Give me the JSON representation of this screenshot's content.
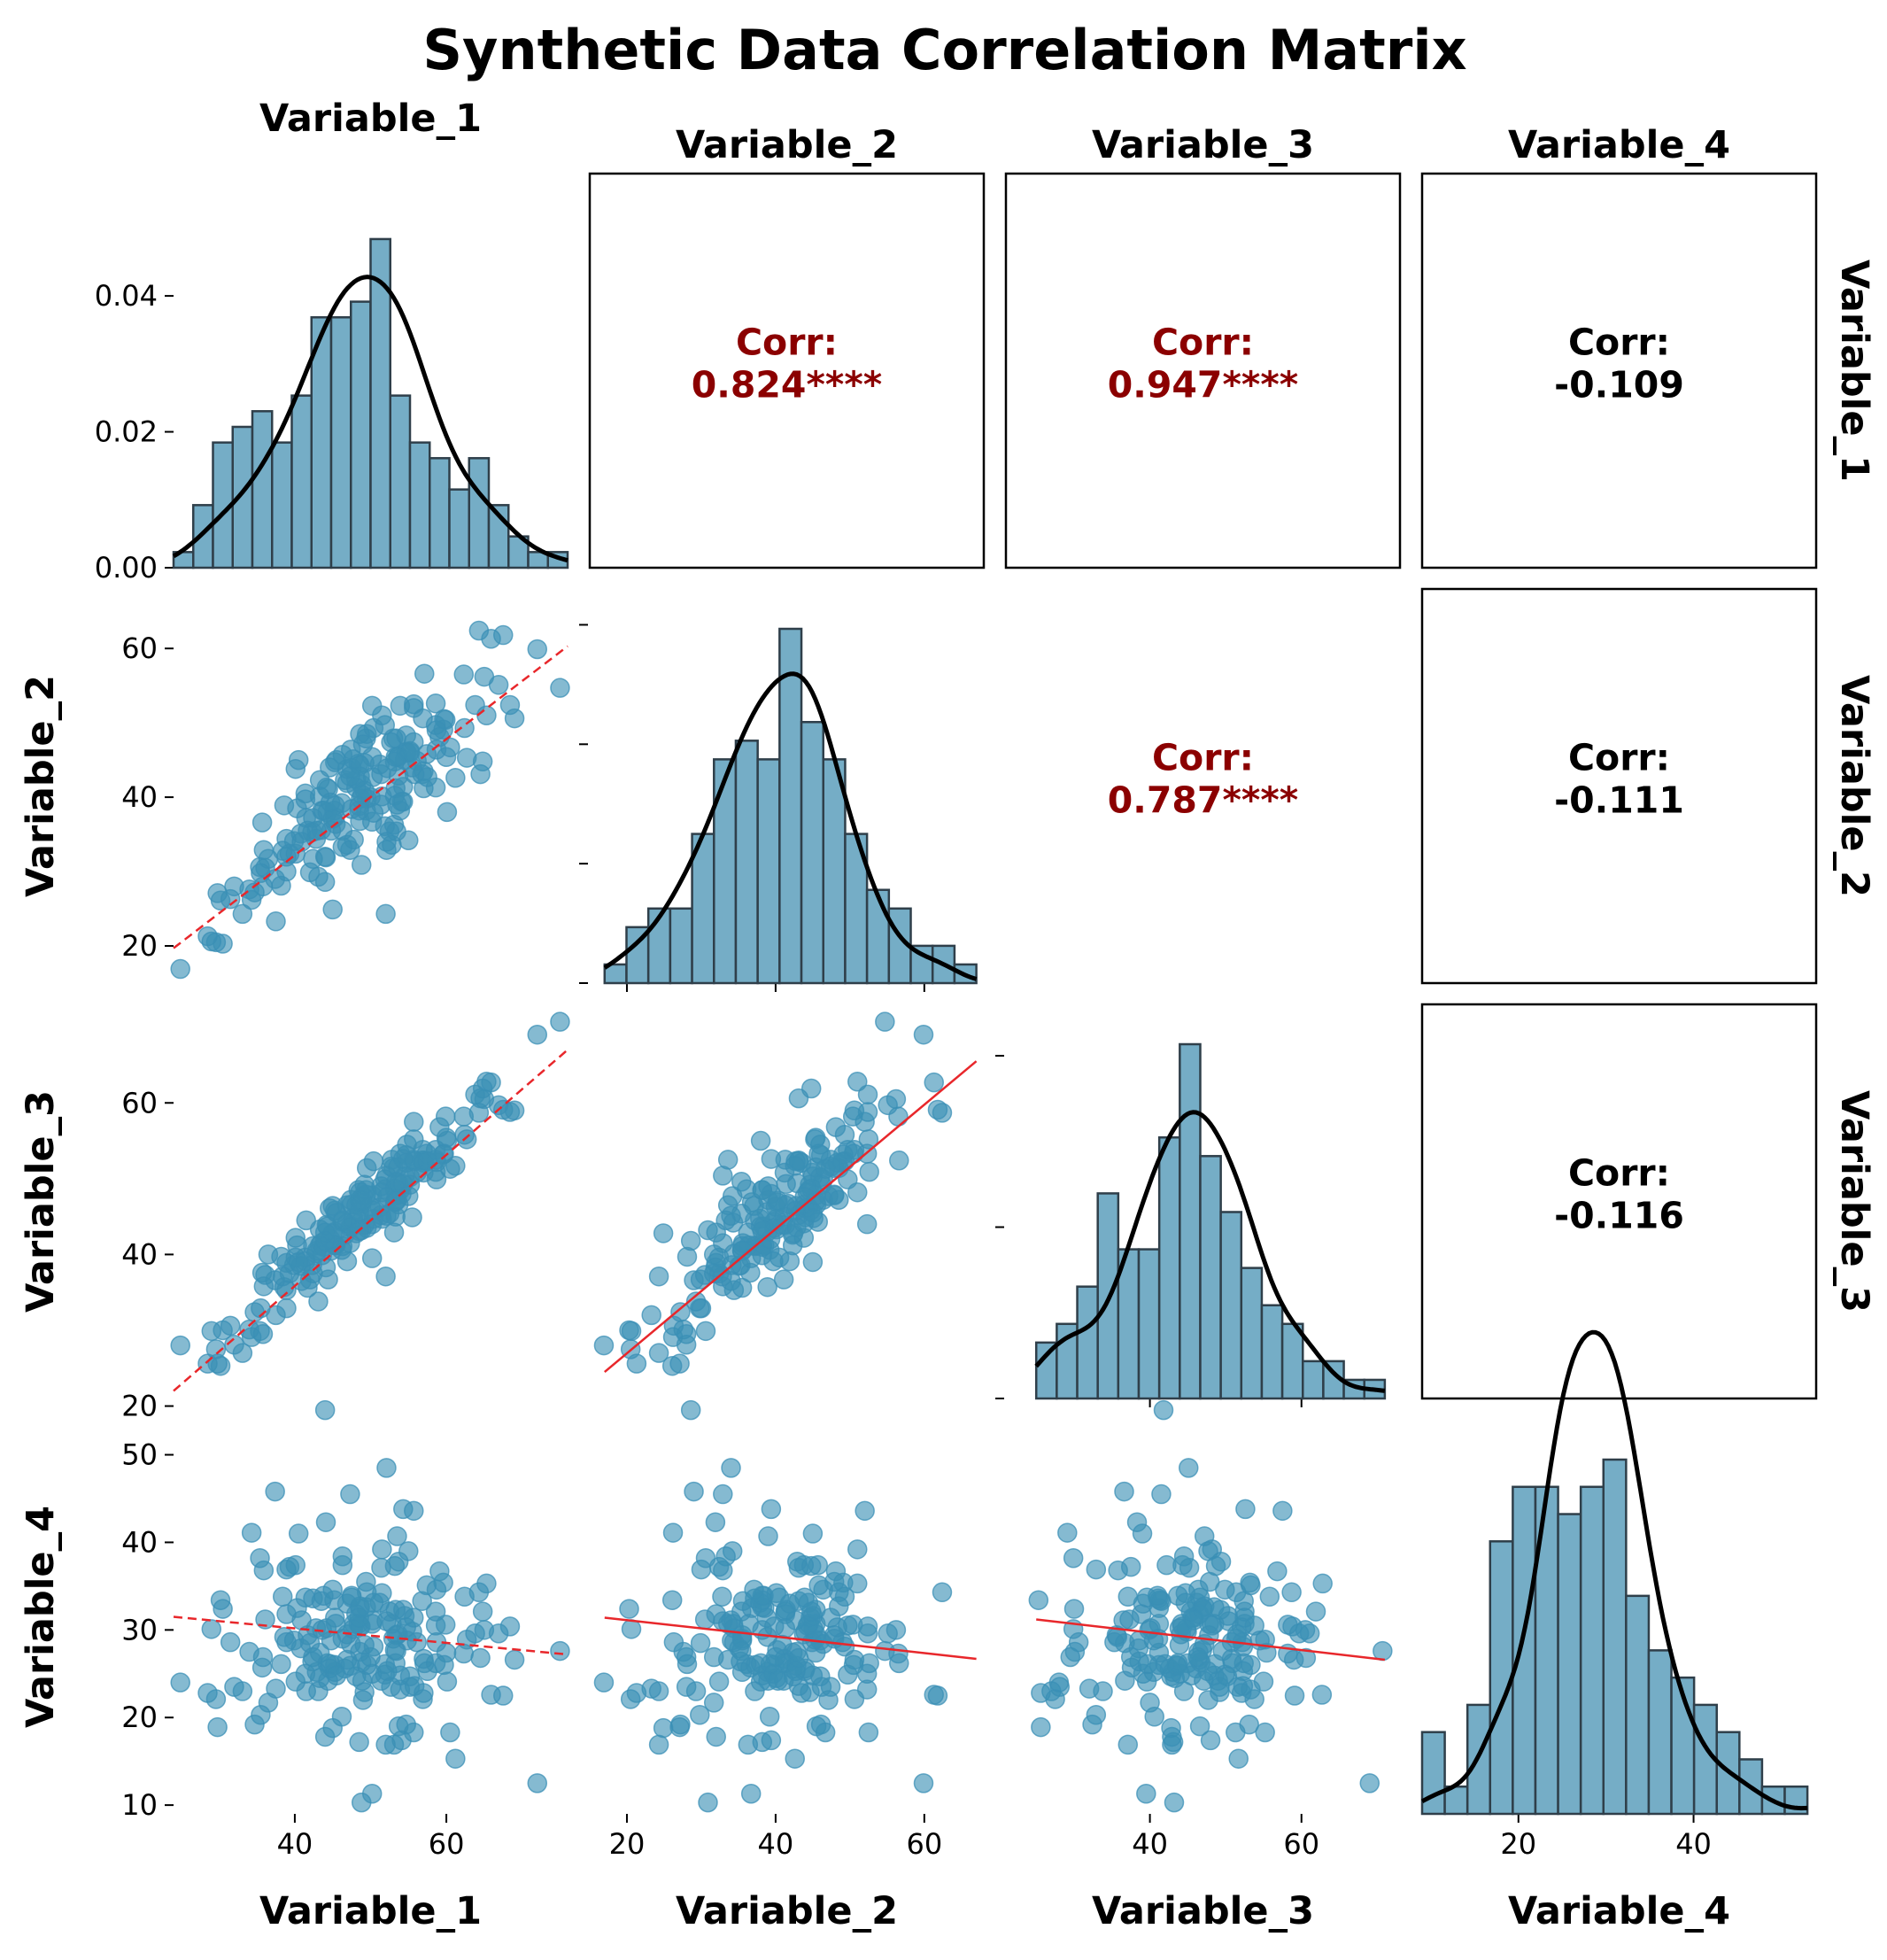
{
  "chart_data": {
    "type": "scatter",
    "title": "Synthetic Data Correlation Matrix",
    "variables": [
      "Variable_1",
      "Variable_2",
      "Variable_3",
      "Variable_4"
    ],
    "axis_ranges": {
      "Variable_1": [
        24,
        76
      ],
      "Variable_2": [
        15,
        68
      ],
      "Variable_3": [
        21,
        73
      ],
      "Variable_4": [
        9,
        54
      ]
    },
    "ticks": {
      "Variable_1": [
        40,
        60
      ],
      "Variable_2": [
        20,
        40,
        60
      ],
      "Variable_3": [
        40,
        60
      ],
      "Variable_4": [
        20,
        40
      ]
    },
    "row_ticks": {
      "Variable_2": [
        20,
        40,
        60
      ],
      "Variable_3": [
        20,
        40,
        60
      ],
      "Variable_4": [
        10,
        20,
        30,
        40,
        50
      ]
    },
    "density_axis": {
      "range": [
        0,
        0.058
      ],
      "ticks": [
        "0.00",
        "0.02",
        "0.04"
      ],
      "tick_values": [
        0,
        0.02,
        0.04
      ]
    },
    "correlations": [
      {
        "row": 0,
        "col": 1,
        "label": "Corr:",
        "value": "0.824****",
        "significant": true,
        "box": true
      },
      {
        "row": 0,
        "col": 2,
        "label": "Corr:",
        "value": "0.947****",
        "significant": true,
        "box": true
      },
      {
        "row": 0,
        "col": 3,
        "label": "Corr:",
        "value": "-0.109",
        "significant": false,
        "box": true
      },
      {
        "row": 1,
        "col": 2,
        "label": "Corr:",
        "value": "0.787****",
        "significant": true,
        "box": false
      },
      {
        "row": 1,
        "col": 3,
        "label": "Corr:",
        "value": "-0.111",
        "significant": false,
        "box": true
      },
      {
        "row": 2,
        "col": 3,
        "label": "Corr:",
        "value": "-0.116",
        "significant": false,
        "box": true
      }
    ],
    "histograms": {
      "Variable_1": {
        "edges": [
          24,
          76
        ],
        "counts": [
          1,
          4,
          8,
          9,
          10,
          8,
          11,
          16,
          16,
          17,
          21,
          11,
          8,
          7,
          5,
          7,
          4,
          2,
          1,
          1
        ]
      },
      "Variable_2": {
        "edges": [
          17,
          67
        ],
        "counts": [
          1,
          3,
          4,
          4,
          8,
          12,
          13,
          12,
          19,
          14,
          12,
          8,
          5,
          4,
          2,
          2,
          1
        ]
      },
      "Variable_3": {
        "edges": [
          25,
          71
        ],
        "counts": [
          3,
          4,
          6,
          11,
          8,
          8,
          14,
          19,
          13,
          10,
          7,
          5,
          4,
          2,
          2,
          1,
          1
        ]
      },
      "Variable_4": {
        "edges": [
          9,
          53
        ],
        "counts": [
          3,
          1,
          4,
          10,
          12,
          12,
          11,
          12,
          13,
          8,
          6,
          5,
          4,
          3,
          2,
          1,
          1
        ]
      }
    },
    "regression_lines": [
      {
        "x": "Variable_1",
        "y": "Variable_2",
        "style": "dashed",
        "from": [
          24,
          19.7
        ],
        "to": [
          76,
          60.3
        ]
      },
      {
        "x": "Variable_1",
        "y": "Variable_3",
        "style": "dashed",
        "from": [
          24,
          22.0
        ],
        "to": [
          76,
          67.0
        ]
      },
      {
        "x": "Variable_1",
        "y": "Variable_4",
        "style": "dashed",
        "from": [
          24,
          31.5
        ],
        "to": [
          76,
          27.2
        ]
      },
      {
        "x": "Variable_2",
        "y": "Variable_3",
        "style": "solid",
        "from": [
          17,
          24.5
        ],
        "to": [
          67,
          65.5
        ]
      },
      {
        "x": "Variable_2",
        "y": "Variable_4",
        "style": "solid",
        "from": [
          17,
          31.4
        ],
        "to": [
          67,
          26.7
        ]
      },
      {
        "x": "Variable_3",
        "y": "Variable_4",
        "style": "solid",
        "from": [
          25,
          31.2
        ],
        "to": [
          71,
          26.6
        ]
      }
    ],
    "points": [
      [
        55.5,
        44.0,
        44.9,
        29.8
      ],
      [
        37.4,
        29.0,
        36.6,
        45.8
      ],
      [
        50.2,
        52.3,
        44.0,
        25.0
      ],
      [
        36.5,
        31.7,
        40.0,
        21.7
      ],
      [
        49.0,
        47.1,
        47.7,
        22.0
      ],
      [
        60.1,
        38.0,
        55.0,
        24.1
      ],
      [
        44.4,
        41.1,
        36.7,
        24.2
      ],
      [
        52.8,
        33.6,
        52.5,
        30.7
      ],
      [
        48.4,
        44.5,
        48.5,
        30.7
      ],
      [
        51.5,
        40.1,
        44.7,
        34.2
      ],
      [
        48.6,
        36.8,
        46.9,
        32.5
      ],
      [
        38.9,
        34.4,
        35.3,
        28.6
      ],
      [
        41.5,
        37.2,
        44.5,
        23.0
      ],
      [
        46.9,
        41.9,
        39.1,
        33.0
      ],
      [
        58.6,
        52.6,
        50.9,
        26.2
      ],
      [
        45.3,
        44.7,
        45.8,
        31.4
      ],
      [
        51.9,
        49.7,
        49.9,
        24.9
      ],
      [
        59.1,
        48.1,
        56.8,
        36.7
      ],
      [
        41.4,
        40.5,
        39.6,
        33.7
      ],
      [
        51.4,
        43.1,
        45.2,
        37.1
      ],
      [
        35.4,
        30.6,
        29.9,
        38.2
      ],
      [
        43.3,
        40.1,
        43.3,
        24.5
      ],
      [
        49.5,
        48.5,
        51.4,
        34.3
      ],
      [
        42.4,
        37.2,
        41.1,
        33.6
      ],
      [
        52.1,
        32.9,
        50.4,
        31.0
      ],
      [
        50.4,
        49.3,
        52.3,
        28.1
      ],
      [
        50.2,
        45.4,
        47.8,
        30.7
      ],
      [
        51.5,
        51.0,
        48.2,
        39.2
      ],
      [
        46.3,
        45.7,
        44.3,
        37.4
      ],
      [
        44.8,
        35.5,
        40.5,
        28.8
      ],
      [
        57.1,
        56.6,
        52.4,
        26.2
      ],
      [
        55.7,
        52.0,
        57.5,
        43.6
      ],
      [
        62.3,
        56.5,
        58.2,
        27.3
      ],
      [
        49.4,
        38.2,
        48.5,
        32.6
      ],
      [
        46.2,
        39.2,
        40.6,
        20.1
      ],
      [
        51.9,
        36.1,
        48.6,
        26.1
      ],
      [
        48.8,
        41.7,
        46.7,
        26.3
      ],
      [
        53.4,
        47.9,
        47.8,
        29.4
      ],
      [
        53.9,
        52.3,
        53.3,
        23.2
      ],
      [
        35.9,
        32.9,
        35.8,
        36.8
      ],
      [
        47.4,
        46.4,
        47.2,
        28.4
      ],
      [
        45.3,
        37.3,
        41.2,
        26.0
      ],
      [
        53.7,
        45.5,
        46.6,
        19.0
      ],
      [
        46.6,
        42.3,
        42.6,
        25.6
      ],
      [
        52.5,
        35.4,
        45.4,
        32.1
      ],
      [
        53.2,
        40.2,
        46.9,
        27.7
      ],
      [
        42.8,
        34.4,
        40.1,
        30.2
      ],
      [
        60.0,
        45.4,
        55.4,
        27.4
      ],
      [
        47.5,
        38.4,
        43.7,
        33.9
      ],
      [
        45.3,
        38.9,
        43.0,
        25.2
      ],
      [
        49.4,
        47.9,
        47.9,
        35.5
      ],
      [
        49.2,
        44.6,
        49.2,
        22.9
      ],
      [
        58.6,
        49.7,
        53.8,
        30.5
      ],
      [
        54.5,
        45.0,
        50.3,
        31.6
      ],
      [
        56.1,
        44.9,
        50.8,
        28.6
      ],
      [
        41.7,
        35.5,
        35.6,
        29.4
      ],
      [
        59.9,
        50.4,
        58.2,
        30.6
      ],
      [
        43.3,
        42.3,
        41.2,
        27.4
      ],
      [
        62.4,
        49.3,
        55.8,
        33.8
      ],
      [
        56.9,
        50.6,
        53.8,
        22.1
      ],
      [
        48.6,
        42.8,
        46.4,
        27.5
      ],
      [
        46.9,
        43.8,
        44.1,
        29.5
      ],
      [
        31.5,
        26.3,
        30.6,
        28.6
      ],
      [
        35.7,
        36.6,
        37.6,
        25.7
      ],
      [
        38.6,
        38.9,
        35.7,
        29.2
      ],
      [
        62.7,
        45.3,
        55.2,
        28.9
      ],
      [
        59.6,
        49.1,
        53.2,
        35.4
      ],
      [
        53.9,
        38.2,
        48.5,
        24.8
      ],
      [
        42.3,
        35.3,
        38.6,
        26.4
      ],
      [
        43.5,
        35.6,
        41.5,
        33.3
      ],
      [
        54.7,
        46.1,
        53.1,
        19.2
      ],
      [
        51.2,
        44.4,
        46.2,
        33.1
      ],
      [
        40.1,
        32.4,
        39.6,
        24.1
      ],
      [
        65.3,
        51.0,
        62.8,
        35.3
      ],
      [
        39.9,
        34.1,
        38.6,
        28.8
      ],
      [
        58.6,
        41.3,
        52.5,
        32.1
      ],
      [
        39.3,
        32.4,
        37.5,
        37.2
      ],
      [
        38.9,
        32.0,
        38.9,
        31.8
      ],
      [
        54.8,
        46.0,
        54.5,
        28.8
      ],
      [
        65.0,
        56.2,
        60.5,
        30.0
      ],
      [
        53.0,
        47.9,
        51.4,
        29.0
      ],
      [
        34.0,
        27.6,
        30.1,
        27.5
      ],
      [
        54.1,
        39.4,
        48.0,
        17.4
      ],
      [
        49.5,
        39.8,
        43.5,
        26.0
      ],
      [
        53.7,
        42.9,
        49.4,
        37.8
      ],
      [
        38.4,
        32.8,
        37.1,
        33.8
      ],
      [
        34.3,
        26.2,
        29.1,
        41.1
      ],
      [
        48.1,
        41.3,
        46.5,
        31.8
      ],
      [
        51.4,
        39.0,
        49.0,
        24.2
      ],
      [
        59.7,
        50.5,
        53.3,
        26.0
      ],
      [
        57.0,
        41.2,
        50.8,
        26.7
      ],
      [
        38.9,
        30.0,
        32.9,
        36.9
      ],
      [
        35.5,
        29.8,
        32.9,
        20.3
      ],
      [
        45.4,
        36.4,
        41.2,
        30.7
      ],
      [
        40.3,
        38.5,
        41.2,
        32.5
      ],
      [
        43.6,
        38.2,
        39.9,
        30.0
      ],
      [
        54.7,
        48.3,
        52.1,
        30.3
      ],
      [
        53.3,
        41.2,
        45.0,
        26.2
      ],
      [
        44.6,
        44.0,
        46.1,
        25.6
      ],
      [
        58.7,
        46.4,
        49.9,
        34.6
      ],
      [
        48.1,
        42.4,
        42.8,
        24.7
      ],
      [
        56.8,
        43.1,
        52.4,
        33.3
      ],
      [
        44.3,
        38.0,
        43.7,
        26.2
      ],
      [
        55.2,
        46.2,
        49.2,
        23.5
      ],
      [
        40.8,
        35.1,
        38.5,
        27.9
      ],
      [
        46.3,
        35.5,
        41.1,
        29.0
      ],
      [
        47.8,
        34.3,
        44.2,
        30.7
      ],
      [
        55.7,
        47.4,
        52.5,
        31.4
      ],
      [
        58.7,
        49.0,
        52.2,
        28.6
      ],
      [
        52.7,
        47.4,
        51.6,
        23.5
      ],
      [
        46.9,
        33.6,
        46.5,
        26.6
      ],
      [
        45.2,
        38.2,
        41.3,
        33.4
      ],
      [
        43.8,
        38.2,
        41.0,
        33.9
      ],
      [
        44.7,
        39.3,
        42.0,
        26.1
      ],
      [
        53.6,
        45.4,
        51.5,
        29.5
      ],
      [
        50.0,
        40.0,
        46.3,
        26.9
      ],
      [
        55.2,
        46.0,
        50.2,
        24.7
      ],
      [
        49.2,
        40.9,
        43.9,
        28.3
      ],
      [
        55.8,
        43.1,
        52.3,
        23.6
      ],
      [
        44.2,
        41.3,
        43.9,
        30.2
      ],
      [
        63.8,
        52.4,
        61.1,
        29.6
      ],
      [
        57.4,
        45.8,
        53.3,
        35.1
      ],
      [
        47.5,
        43.9,
        46.6,
        33.7
      ],
      [
        48.7,
        39.8,
        44.3,
        30.4
      ],
      [
        66.9,
        55.1,
        59.7,
        29.6
      ],
      [
        40.9,
        34.0,
        36.5,
        31.1
      ],
      [
        47.7,
        45.1,
        44.8,
        30.1
      ],
      [
        57.0,
        43.5,
        52.1,
        22.8
      ],
      [
        53.2,
        44.8,
        48.7,
        37.3
      ],
      [
        41.4,
        39.7,
        39.1,
        25.0
      ],
      [
        48.6,
        44.3,
        48.2,
        30.5
      ],
      [
        52.2,
        43.9,
        47.6,
        25.3
      ],
      [
        48.6,
        48.5,
        47.2,
        32.7
      ],
      [
        53.4,
        35.4,
        49.6,
        27.6
      ],
      [
        35.8,
        28.0,
        29.5,
        26.9
      ],
      [
        47.3,
        42.8,
        43.6,
        25.9
      ],
      [
        53.5,
        39.0,
        47.2,
        40.7
      ],
      [
        42.9,
        35.5,
        40.5,
        25.2
      ],
      [
        53.3,
        45.4,
        47.0,
        32.3
      ],
      [
        50.4,
        37.9,
        44.7,
        33.1
      ],
      [
        45.5,
        45.0,
        45.5,
        24.8
      ],
      [
        48.5,
        38.8,
        45.6,
        31.4
      ],
      [
        50.3,
        42.7,
        45.8,
        31.1
      ],
      [
        48.9,
        40.3,
        47.1,
        24.2
      ],
      [
        45.0,
        37.1,
        46.4,
        34.6
      ],
      [
        57.5,
        42.7,
        52.3,
        25.3
      ],
      [
        38.2,
        28.1,
        39.7,
        26.1
      ],
      [
        54.3,
        41.4,
        49.3,
        32.3
      ],
      [
        32.0,
        28.0,
        28.1,
        23.5
      ],
      [
        75.0,
        54.7,
        70.7,
        27.6
      ],
      [
        24.9,
        16.9,
        28.0,
        24.0
      ],
      [
        33.1,
        24.3,
        27.0,
        23.0
      ],
      [
        72.0,
        59.9,
        69.0,
        12.5
      ],
      [
        64.3,
        62.4,
        58.7,
        34.3
      ],
      [
        67.5,
        61.8,
        59.1,
        22.5
      ],
      [
        69.0,
        50.6,
        59.0,
        26.6
      ],
      [
        45.0,
        24.9,
        42.8,
        18.8
      ],
      [
        52.0,
        24.3,
        37.1,
        16.9
      ],
      [
        30.5,
        20.3,
        30.0,
        32.4
      ],
      [
        28.5,
        21.3,
        25.6,
        22.8
      ],
      [
        30.2,
        26.1,
        25.3,
        33.4
      ],
      [
        29.6,
        20.5,
        27.5,
        22.1
      ],
      [
        64.8,
        44.8,
        61.9,
        32.1
      ],
      [
        64.5,
        43.1,
        60.6,
        26.8
      ],
      [
        42.0,
        29.9,
        36.7,
        28.5
      ],
      [
        43.1,
        29.3,
        33.8,
        23.0
      ],
      [
        55.7,
        52.5,
        55.2,
        18.3
      ],
      [
        68.4,
        52.4,
        58.8,
        30.4
      ],
      [
        36.1,
        30.5,
        37.3,
        31.2
      ],
      [
        44.1,
        31.9,
        38.3,
        42.3
      ],
      [
        29.0,
        20.6,
        29.9,
        30.1
      ],
      [
        37.5,
        23.3,
        32.0,
        23.3
      ],
      [
        60.5,
        46.7,
        51.3,
        18.3
      ],
      [
        61.2,
        42.6,
        51.7,
        15.3
      ],
      [
        65.9,
        61.3,
        62.7,
        22.6
      ],
      [
        29.8,
        27.1,
        25.6,
        18.9
      ],
      [
        40.1,
        43.8,
        42.2,
        37.4
      ],
      [
        40.5,
        45.0,
        39.0,
        41.0
      ],
      [
        42.4,
        31.7,
        37.5,
        26.9
      ],
      [
        53.1,
        36.3,
        42.9,
        16.9
      ],
      [
        50.2,
        36.7,
        39.5,
        11.3
      ],
      [
        48.8,
        30.9,
        43.2,
        10.3
      ],
      [
        34.7,
        27.2,
        32.4,
        19.2
      ],
      [
        48.5,
        38.2,
        43.1,
        17.2
      ],
      [
        54.3,
        39.4,
        52.6,
        43.8
      ],
      [
        44.0,
        28.6,
        41.8,
        55.1
      ],
      [
        47.3,
        32.9,
        41.5,
        45.5
      ],
      [
        52.1,
        34.0,
        45.1,
        48.5
      ],
      [
        55.0,
        34.2,
        47.7,
        39.0
      ],
      [
        46.3,
        33.3,
        44.5,
        38.4
      ],
      [
        44.0,
        32.0,
        42.9,
        17.8
      ]
    ]
  }
}
